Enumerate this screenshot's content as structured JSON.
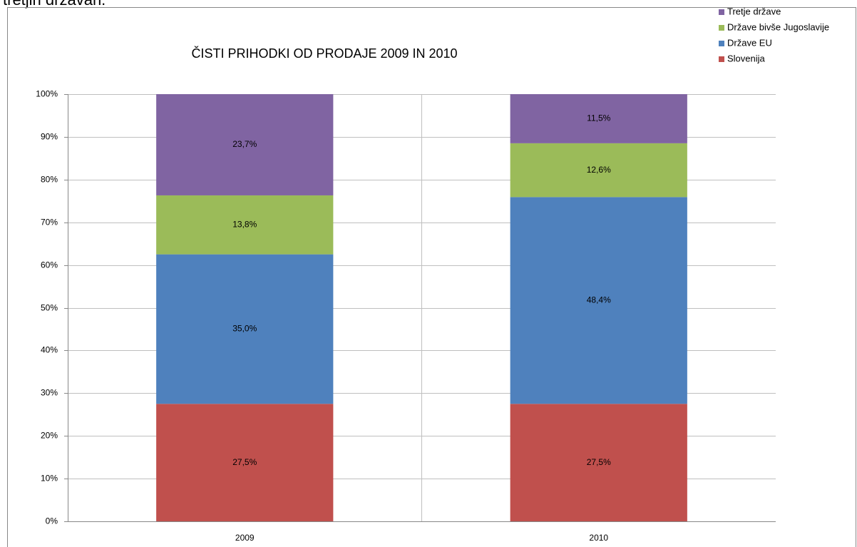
{
  "caption": "tretjih državah.",
  "chart_data": {
    "type": "stacked_bar",
    "title": "ČISTI PRIHODKI OD PRODAJE 2009 IN 2010",
    "categories": [
      "2009",
      "2010"
    ],
    "series": [
      {
        "name": "Slovenija",
        "color": "#c0504d",
        "values": [
          27.5,
          27.5
        ],
        "value_labels": [
          "27,5%",
          "27,5%"
        ]
      },
      {
        "name": "Države EU",
        "color": "#4f81bd",
        "values": [
          35.0,
          48.4
        ],
        "value_labels": [
          "35,0%",
          "48,4%"
        ]
      },
      {
        "name": "Države bivše Jugoslavije",
        "color": "#9bbb59",
        "values": [
          13.8,
          12.6
        ],
        "value_labels": [
          "13,8%",
          "12,6%"
        ]
      },
      {
        "name": "Tretje države",
        "color": "#8064a2",
        "values": [
          23.7,
          11.5
        ],
        "value_labels": [
          "23,7%",
          "11,5%"
        ]
      }
    ],
    "ylim": [
      0,
      100
    ],
    "yticks": [
      {
        "value": 0,
        "label": "0%"
      },
      {
        "value": 10,
        "label": "10%"
      },
      {
        "value": 20,
        "label": "20%"
      },
      {
        "value": 30,
        "label": "30%"
      },
      {
        "value": 40,
        "label": "40%"
      },
      {
        "value": 50,
        "label": "50%"
      },
      {
        "value": 60,
        "label": "60%"
      },
      {
        "value": 70,
        "label": "70%"
      },
      {
        "value": 80,
        "label": "80%"
      },
      {
        "value": 90,
        "label": "90%"
      },
      {
        "value": 100,
        "label": "100%"
      }
    ],
    "grid": true,
    "legend": "top-right"
  }
}
